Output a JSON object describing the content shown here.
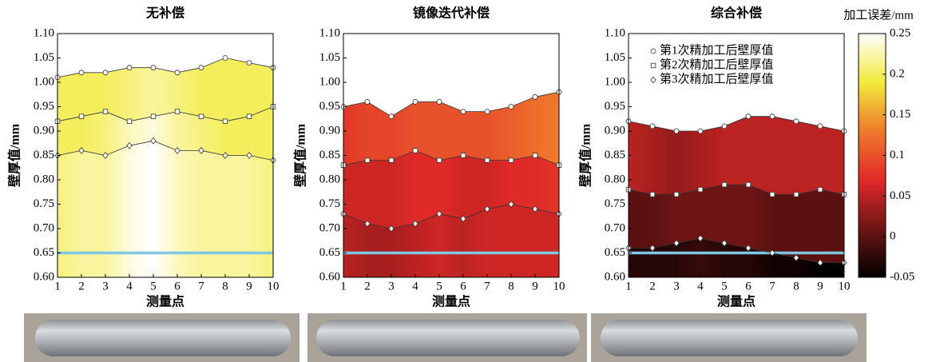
{
  "chart_data": [
    {
      "type": "line",
      "title": "无补偿",
      "xlabel": "测量点",
      "ylabel": "壁厚值/mm",
      "x": [
        1,
        2,
        3,
        4,
        5,
        6,
        7,
        8,
        9,
        10
      ],
      "xlim": [
        1,
        10
      ],
      "xticks": [
        1,
        2,
        3,
        4,
        5,
        6,
        7,
        8,
        9,
        10
      ],
      "ylim": [
        0.6,
        1.1
      ],
      "yticks": [
        {
          "value": 0.6,
          "label": "0.60"
        },
        0.65,
        {
          "value": 0.7,
          "label": "0.70"
        },
        0.75,
        {
          "value": 0.8,
          "label": "0.80"
        },
        0.85,
        {
          "value": 0.9,
          "label": "0.90"
        },
        0.95,
        {
          "value": 1.0,
          "label": "1.00"
        },
        1.05,
        {
          "value": 1.1,
          "label": "1.10"
        }
      ],
      "hline": 0.65,
      "hline_color": "#7ec8e3",
      "series": [
        {
          "name": "第1次精加工后壁厚值",
          "marker": "circle",
          "color": "#333333",
          "values": [
            1.01,
            1.02,
            1.02,
            1.03,
            1.03,
            1.02,
            1.03,
            1.05,
            1.04,
            1.03
          ]
        },
        {
          "name": "第2次精加工后壁厚值",
          "marker": "square",
          "color": "#333333",
          "values": [
            0.92,
            0.93,
            0.94,
            0.92,
            0.93,
            0.94,
            0.93,
            0.92,
            0.93,
            0.95
          ]
        },
        {
          "name": "第3次精加工后壁厚值",
          "marker": "diamond",
          "color": "#333333",
          "values": [
            0.85,
            0.86,
            0.85,
            0.87,
            0.88,
            0.86,
            0.86,
            0.85,
            0.85,
            0.84
          ]
        }
      ],
      "error_bands": [
        [
          0.2,
          0.2,
          0.2,
          0.21,
          0.22,
          0.21,
          0.2,
          0.2,
          0.2,
          0.2
        ],
        [
          0.2,
          0.2,
          0.21,
          0.23,
          0.24,
          0.22,
          0.21,
          0.2,
          0.2,
          0.2
        ],
        [
          0.21,
          0.22,
          0.22,
          0.24,
          0.25,
          0.23,
          0.22,
          0.22,
          0.22,
          0.21
        ]
      ]
    },
    {
      "type": "line",
      "title": "镜像迭代补偿",
      "xlabel": "测量点",
      "ylabel": "壁厚值/mm",
      "x": [
        1,
        2,
        3,
        4,
        5,
        6,
        7,
        8,
        9,
        10
      ],
      "xlim": [
        1,
        10
      ],
      "xticks": [
        1,
        2,
        3,
        4,
        5,
        6,
        7,
        8,
        9,
        10
      ],
      "ylim": [
        0.6,
        1.1
      ],
      "yticks": [
        {
          "value": 0.6,
          "label": "0.60"
        },
        0.65,
        {
          "value": 0.7,
          "label": "0.70"
        },
        0.75,
        {
          "value": 0.8,
          "label": "0.80"
        },
        0.85,
        {
          "value": 0.9,
          "label": "0.90"
        },
        0.95,
        {
          "value": 1.0,
          "label": "1.00"
        },
        1.05,
        {
          "value": 1.1,
          "label": "1.10"
        }
      ],
      "hline": 0.65,
      "hline_color": "#7ec8e3",
      "series": [
        {
          "name": "第1次精加工后壁厚值",
          "marker": "circle",
          "color": "#333333",
          "values": [
            0.95,
            0.96,
            0.93,
            0.96,
            0.96,
            0.94,
            0.94,
            0.95,
            0.97,
            0.98
          ]
        },
        {
          "name": "第2次精加工后壁厚值",
          "marker": "square",
          "color": "#333333",
          "values": [
            0.83,
            0.84,
            0.84,
            0.86,
            0.84,
            0.85,
            0.84,
            0.84,
            0.85,
            0.83
          ]
        },
        {
          "name": "第3次精加工后壁厚值",
          "marker": "diamond",
          "color": "#333333",
          "values": [
            0.73,
            0.71,
            0.7,
            0.71,
            0.73,
            0.72,
            0.74,
            0.75,
            0.74,
            0.73
          ]
        }
      ],
      "error_bands": [
        [
          0.08,
          0.09,
          0.09,
          0.1,
          0.1,
          0.1,
          0.1,
          0.11,
          0.12,
          0.13
        ],
        [
          0.06,
          0.06,
          0.06,
          0.07,
          0.07,
          0.06,
          0.06,
          0.07,
          0.07,
          0.08
        ],
        [
          0.05,
          0.04,
          0.04,
          0.05,
          0.06,
          0.05,
          0.06,
          0.06,
          0.06,
          0.06
        ]
      ]
    },
    {
      "type": "line",
      "title": "综合补偿",
      "xlabel": "测量点",
      "ylabel": "壁厚值/mm",
      "x": [
        1,
        2,
        3,
        4,
        5,
        6,
        7,
        8,
        9,
        10
      ],
      "xlim": [
        1,
        10
      ],
      "xticks": [
        1,
        2,
        3,
        4,
        5,
        6,
        7,
        8,
        9,
        10
      ],
      "ylim": [
        0.6,
        1.1
      ],
      "yticks": [
        {
          "value": 0.6,
          "label": "0.60"
        },
        0.65,
        {
          "value": 0.7,
          "label": "0.70"
        },
        0.75,
        {
          "value": 0.8,
          "label": "0.80"
        },
        0.85,
        {
          "value": 0.9,
          "label": "0.90"
        },
        0.95,
        {
          "value": 1.0,
          "label": "1.00"
        },
        1.05,
        {
          "value": 1.1,
          "label": "1.10"
        }
      ],
      "hline": 0.65,
      "hline_color": "#7ec8e3",
      "legend": "upper right",
      "series": [
        {
          "name": "第1次精加工后壁厚值",
          "marker": "circle",
          "color": "#333333",
          "values": [
            0.92,
            0.91,
            0.9,
            0.9,
            0.91,
            0.93,
            0.93,
            0.92,
            0.91,
            0.9
          ]
        },
        {
          "name": "第2次精加工后壁厚值",
          "marker": "square",
          "color": "#333333",
          "values": [
            0.78,
            0.77,
            0.77,
            0.78,
            0.79,
            0.79,
            0.77,
            0.77,
            0.78,
            0.77
          ]
        },
        {
          "name": "第3次精加工后壁厚值",
          "marker": "diamond",
          "color": "#333333",
          "values": [
            0.66,
            0.66,
            0.67,
            0.68,
            0.67,
            0.66,
            0.65,
            0.64,
            0.63,
            0.63
          ]
        }
      ],
      "error_bands": [
        [
          0.05,
          0.04,
          0.03,
          0.04,
          0.05,
          0.05,
          0.05,
          0.05,
          0.05,
          0.05
        ],
        [
          0,
          0,
          0.01,
          0.01,
          0.01,
          0.01,
          0,
          0,
          0,
          0
        ],
        [
          -0.03,
          -0.03,
          -0.03,
          -0.02,
          -0.03,
          -0.03,
          -0.04,
          -0.04,
          -0.05,
          -0.05
        ]
      ],
      "colorbar": {
        "label": "加工误差/mm",
        "lim": [
          -0.05,
          0.25
        ],
        "ticks": [
          0.25,
          0.2,
          0.15,
          0.1,
          0.05,
          0,
          -0.05
        ],
        "colormap": [
          "#000000",
          "#6e1414",
          "#e02a28",
          "#ef7a2c",
          "#f2ea3c",
          "#ffffff"
        ]
      }
    }
  ]
}
